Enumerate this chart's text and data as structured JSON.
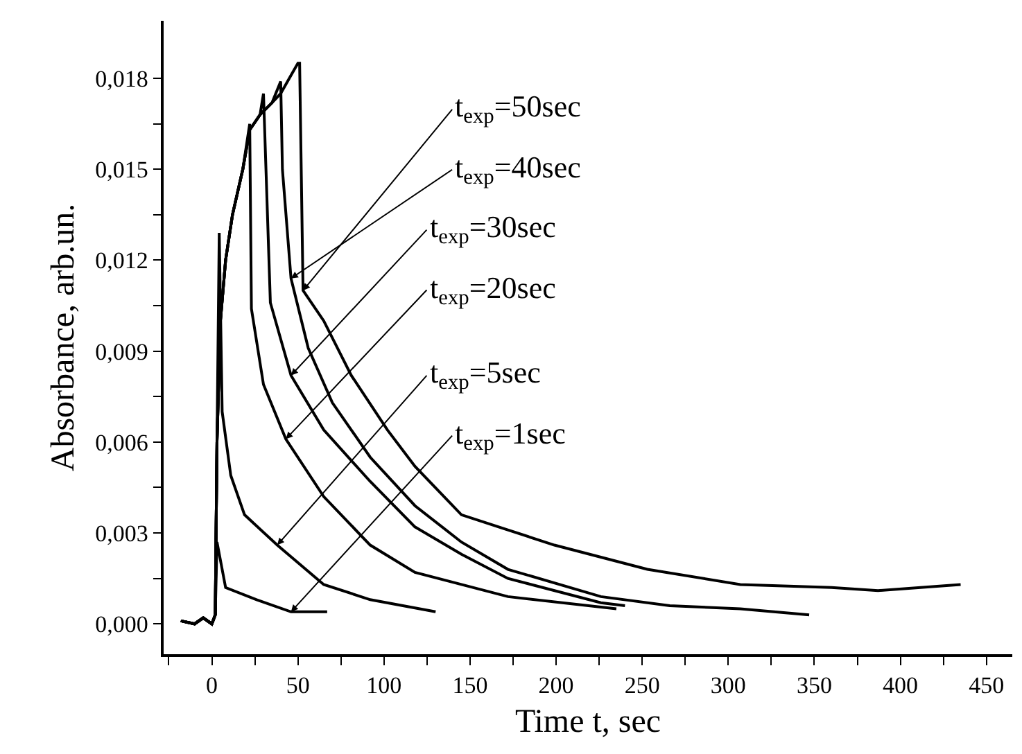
{
  "chart_data": {
    "type": "line",
    "xlabel": "Time t, sec",
    "ylabel": "Absorbance, arb.un.",
    "xlim": [
      -28,
      465
    ],
    "ylim": [
      -0.001,
      0.0199
    ],
    "xticks": [
      {
        "value": -25,
        "label": null
      },
      0,
      {
        "value": 25,
        "label": null
      },
      50,
      {
        "value": 75,
        "label": null
      },
      100,
      {
        "value": 125,
        "label": null
      },
      150,
      {
        "value": 175,
        "label": null
      },
      200,
      {
        "value": 225,
        "label": null
      },
      250,
      {
        "value": 275,
        "label": null
      },
      300,
      {
        "value": 325,
        "label": null
      },
      350,
      {
        "value": 375,
        "label": null
      },
      400,
      {
        "value": 425,
        "label": null
      },
      450
    ],
    "yticks": [
      {
        "value": 0,
        "label": "0,000"
      },
      {
        "value": 0.0015,
        "label": null
      },
      {
        "value": 0.003,
        "label": "0,003"
      },
      {
        "value": 0.0045,
        "label": null
      },
      {
        "value": 0.006,
        "label": "0,006"
      },
      {
        "value": 0.0075,
        "label": null
      },
      {
        "value": 0.009,
        "label": "0,009"
      },
      {
        "value": 0.0105,
        "label": null
      },
      {
        "value": 0.012,
        "label": "0,012"
      },
      {
        "value": 0.0135,
        "label": null
      },
      {
        "value": 0.015,
        "label": "0,015"
      },
      {
        "value": 0.0165,
        "label": null
      },
      {
        "value": 0.018,
        "label": "0,018"
      }
    ],
    "series": [
      {
        "color": "#000000",
        "x": [
          -18,
          -10,
          -5,
          0,
          2,
          3,
          5,
          8,
          12,
          18,
          22,
          28,
          35,
          40,
          45,
          50,
          51,
          53,
          65,
          81,
          102,
          118,
          145,
          199,
          253,
          307,
          360,
          387,
          435
        ],
        "values": [
          0.0001,
          0.0,
          0.0002,
          0.0,
          0.0003,
          0.006,
          0.01,
          0.012,
          0.0135,
          0.015,
          0.0163,
          0.0168,
          0.0172,
          0.0175,
          0.018,
          0.0185,
          0.0185,
          0.011,
          0.01,
          0.0082,
          0.0064,
          0.0052,
          0.0036,
          0.0026,
          0.0018,
          0.0013,
          0.0012,
          0.0011,
          0.0013
        ]
      },
      {
        "color": "#000000",
        "x": [
          -18,
          -10,
          -5,
          0,
          2,
          3,
          5,
          8,
          12,
          18,
          22,
          28,
          35,
          40,
          41,
          46,
          56,
          70,
          92,
          118,
          145,
          172,
          226,
          266,
          307,
          347
        ],
        "values": [
          0.0001,
          0.0,
          0.0002,
          0.0,
          0.0003,
          0.006,
          0.01,
          0.012,
          0.0135,
          0.015,
          0.0163,
          0.0168,
          0.0172,
          0.0179,
          0.015,
          0.0114,
          0.0091,
          0.0073,
          0.0055,
          0.0039,
          0.0027,
          0.0018,
          0.0009,
          0.0006,
          0.0005,
          0.0003
        ]
      },
      {
        "color": "#000000",
        "x": [
          -18,
          -10,
          -5,
          0,
          2,
          3,
          5,
          8,
          12,
          18,
          22,
          28,
          30,
          34,
          46,
          65,
          92,
          118,
          145,
          172,
          226,
          240
        ],
        "values": [
          0.0001,
          0.0,
          0.0002,
          0.0,
          0.0003,
          0.006,
          0.01,
          0.012,
          0.0135,
          0.015,
          0.0163,
          0.0168,
          0.0175,
          0.0106,
          0.0082,
          0.0064,
          0.0047,
          0.0032,
          0.0023,
          0.0015,
          0.0007,
          0.0006
        ]
      },
      {
        "color": "#000000",
        "x": [
          -18,
          -10,
          -5,
          0,
          2,
          3,
          5,
          8,
          12,
          18,
          22,
          23,
          30,
          43,
          65,
          92,
          118,
          172,
          235
        ],
        "values": [
          0.0001,
          0.0,
          0.0002,
          0.0,
          0.0003,
          0.006,
          0.01,
          0.012,
          0.0135,
          0.015,
          0.0165,
          0.0104,
          0.0079,
          0.0061,
          0.0042,
          0.0026,
          0.0017,
          0.0009,
          0.0005
        ]
      },
      {
        "color": "#000000",
        "x": [
          -18,
          -10,
          -5,
          0,
          2,
          3,
          4.3,
          6,
          11,
          19,
          38,
          65,
          92,
          130
        ],
        "values": [
          0.0001,
          0.0,
          0.0002,
          0.0,
          0.0003,
          0.006,
          0.0129,
          0.007,
          0.0049,
          0.0036,
          0.0026,
          0.0013,
          0.0008,
          0.0004
        ]
      },
      {
        "color": "#000000",
        "x": [
          -18,
          -10,
          -5,
          0,
          2,
          3,
          8,
          26,
          46,
          67
        ],
        "values": [
          0.0001,
          0.0,
          0.0002,
          0.0,
          0.0003,
          0.0027,
          0.0012,
          0.0008,
          0.0004,
          0.0004
        ]
      }
    ],
    "annotations": [
      {
        "text": "t$_{exp}$=50sec",
        "x": 53,
        "y": 0.011
      },
      {
        "text": "t$_{exp}$=40sec",
        "x": 46,
        "y": 0.0114
      },
      {
        "text": "t$_{exp}$=30sec",
        "x": 46,
        "y": 0.0082
      },
      {
        "text": "t$_{exp}$=20sec",
        "x": 43,
        "y": 0.0061
      },
      {
        "text": "t$_{exp}$=5sec",
        "x": 38,
        "y": 0.0026
      },
      {
        "text": "t$_{exp}$=1sec",
        "x": 46,
        "y": 0.0004
      }
    ]
  }
}
